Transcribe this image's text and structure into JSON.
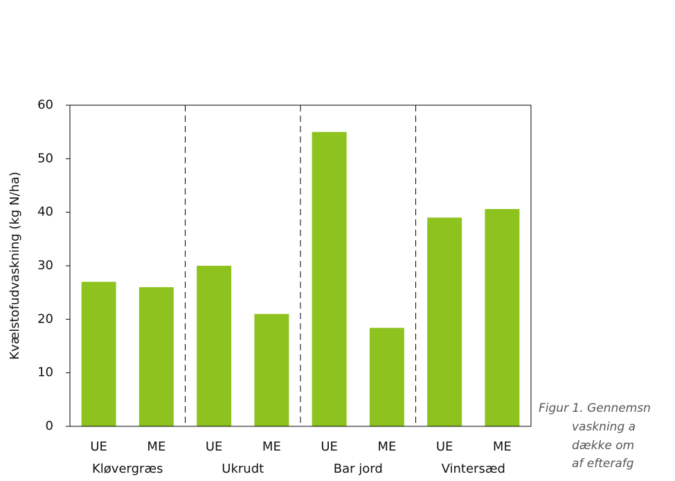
{
  "chart_data": {
    "type": "bar",
    "y_label": "Kvælstofudvaskning (kg N/ha)",
    "categories": [
      "UE",
      "ME",
      "UE",
      "ME",
      "UE",
      "ME",
      "UE",
      "ME"
    ],
    "groups": [
      "Kløvergræs",
      "Ukrudt",
      "Bar jord",
      "Vintersæd"
    ],
    "values": [
      27,
      26,
      30,
      21,
      55,
      18.4,
      39,
      40.6
    ],
    "color": "#8dc21f",
    "ylim": [
      0,
      60
    ],
    "yticks": [
      0,
      10,
      20,
      30,
      40,
      50,
      60
    ],
    "group_separators": true,
    "caption_lines": [
      "Figur 1. Gennemsn",
      "vaskning a",
      "dække om",
      "af efterafg"
    ]
  }
}
